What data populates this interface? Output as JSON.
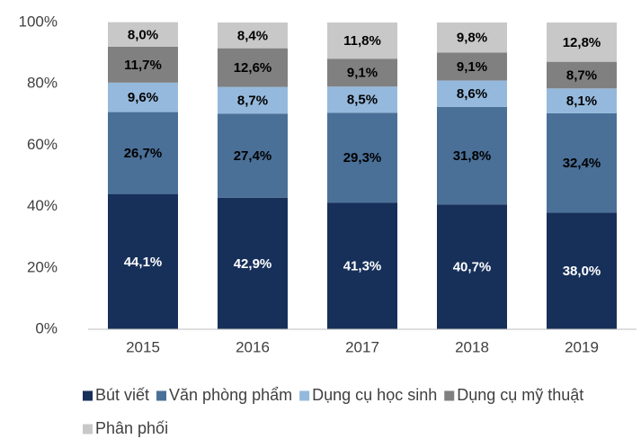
{
  "chart_data": {
    "type": "stacked_bar",
    "categories": [
      "2015",
      "2016",
      "2017",
      "2018",
      "2019"
    ],
    "series": [
      {
        "name": "Bút viết",
        "color": "#17305a",
        "label_color": "#ffffff",
        "values": [
          44.1,
          42.9,
          41.3,
          40.7,
          38.0
        ],
        "value_labels": [
          "44,1%",
          "42,9%",
          "41,3%",
          "40,7%",
          "38,0%"
        ]
      },
      {
        "name": "Văn phòng phẩm",
        "color": "#4a7098",
        "label_color": "#000000",
        "values": [
          26.7,
          27.4,
          29.3,
          31.8,
          32.4
        ],
        "value_labels": [
          "26,7%",
          "27,4%",
          "29,3%",
          "31,8%",
          "32,4%"
        ]
      },
      {
        "name": "Dụng cụ học sinh",
        "color": "#95b9dc",
        "label_color": "#000000",
        "values": [
          9.6,
          8.7,
          8.5,
          8.6,
          8.1
        ],
        "value_labels": [
          "9,6%",
          "8,7%",
          "8,5%",
          "8,6%",
          "8,1%"
        ]
      },
      {
        "name": "Dụng cụ mỹ thuật",
        "color": "#808080",
        "label_color": "#000000",
        "values": [
          11.7,
          12.6,
          9.1,
          9.1,
          8.7
        ],
        "value_labels": [
          "11,7%",
          "12,6%",
          "9,1%",
          "9,1%",
          "8,7%"
        ]
      },
      {
        "name": "Phân phối",
        "color": "#c8c8c8",
        "label_color": "#000000",
        "values": [
          8.0,
          8.4,
          11.8,
          9.8,
          12.8
        ],
        "value_labels": [
          "8,0%",
          "8,4%",
          "11,8%",
          "9,8%",
          "12,8%"
        ]
      }
    ],
    "ylim": [
      0,
      100
    ],
    "yticks": [
      {
        "value": 0,
        "label": "0%"
      },
      {
        "value": 20,
        "label": "20%"
      },
      {
        "value": 40,
        "label": "40%"
      },
      {
        "value": 60,
        "label": "60%"
      },
      {
        "value": 80,
        "label": "80%"
      },
      {
        "value": 100,
        "label": "100%"
      }
    ],
    "grid": false,
    "legend": "bottom"
  }
}
